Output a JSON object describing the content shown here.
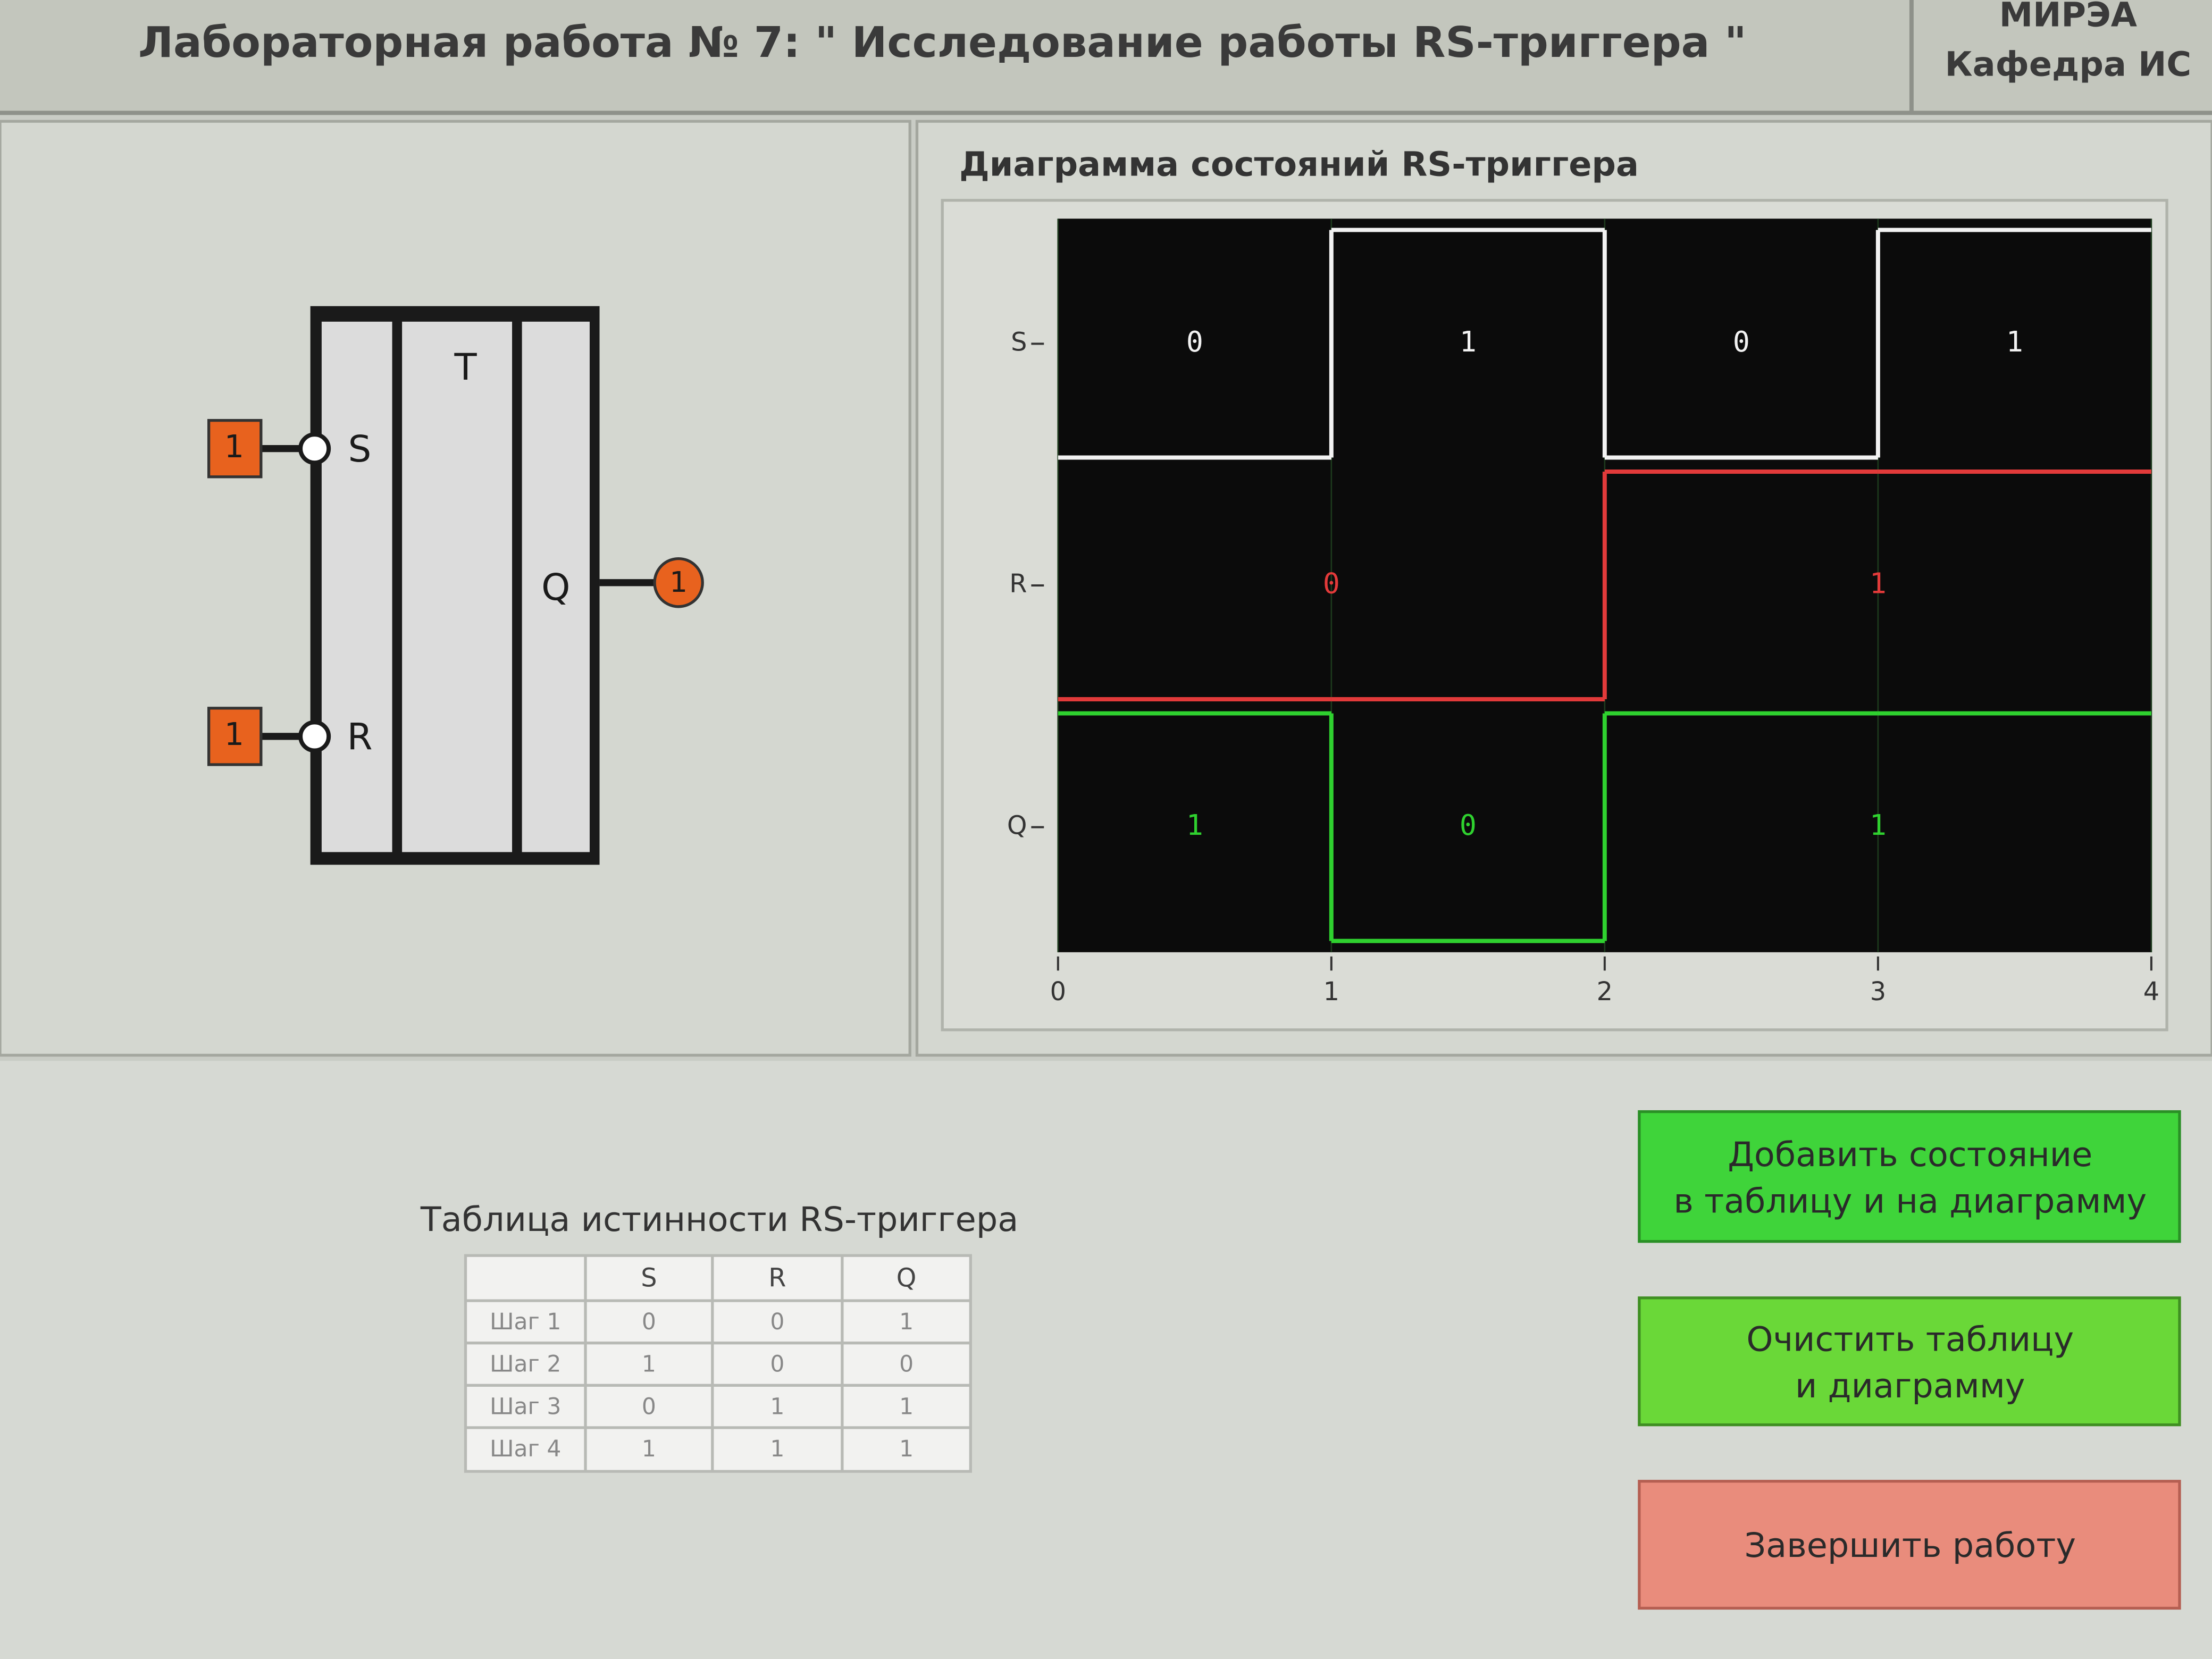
{
  "header": {
    "title": "Лабораторная работа № 7: \" Исследование работы RS-триггера \"",
    "org": [
      "МИРЭА",
      "Кафедра ИС"
    ]
  },
  "circuit": {
    "block_label": "T",
    "inputs": [
      {
        "name": "S",
        "value": "1"
      },
      {
        "name": "R",
        "value": "1"
      }
    ],
    "output": {
      "name": "Q",
      "value": "1"
    }
  },
  "diagram": {
    "title": "Диаграмма состояний RS-триггера",
    "signals": [
      {
        "name": "S",
        "color": "#f2f2f2",
        "values": [
          0,
          1,
          0,
          1
        ]
      },
      {
        "name": "R",
        "color": "#e23a3a",
        "values": [
          0,
          0,
          1,
          1
        ]
      },
      {
        "name": "Q",
        "color": "#2fd12f",
        "values": [
          1,
          0,
          1,
          1
        ]
      }
    ],
    "xticks": [
      0,
      1,
      2,
      3,
      4
    ]
  },
  "table": {
    "title": "Таблица истинности RS-триггера",
    "columns": [
      "S",
      "R",
      "Q"
    ],
    "rows": [
      [
        "Шаг 1",
        "0",
        "0",
        "1"
      ],
      [
        "Шаг 2",
        "1",
        "0",
        "0"
      ],
      [
        "Шаг 3",
        "0",
        "1",
        "1"
      ],
      [
        "Шаг 4",
        "1",
        "1",
        "1"
      ]
    ]
  },
  "buttons": [
    {
      "label": [
        "Добавить состояние",
        "в таблицу и на диаграмму"
      ]
    },
    {
      "label": [
        "Очистить таблицу",
        "и диаграмму"
      ]
    },
    {
      "label": [
        "Завершить работу"
      ]
    }
  ]
}
